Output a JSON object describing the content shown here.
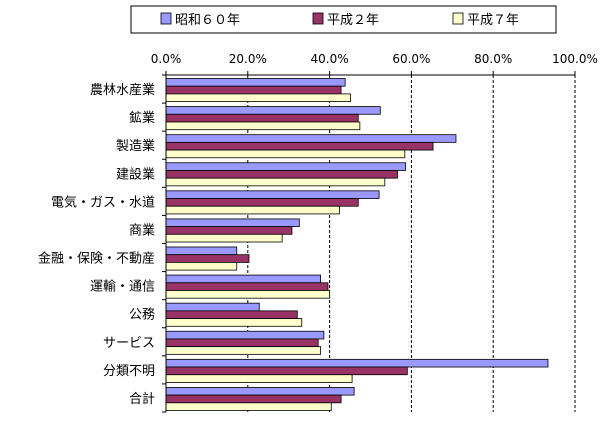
{
  "chart_data": {
    "type": "bar",
    "orientation": "horizontal",
    "categories": [
      "農林水産業",
      "鉱業",
      "製造業",
      "建設業",
      "電気・ガス・水道",
      "商業",
      "金融・保険・不動産",
      "運輸・通信",
      "公務",
      "サービス",
      "分類不明",
      "合計"
    ],
    "series": [
      {
        "name": "昭和６０年",
        "color": "#9999ff",
        "values": [
          43.8,
          52.4,
          70.9,
          58.6,
          52.1,
          32.6,
          17.3,
          37.8,
          22.8,
          38.6,
          93.4,
          46.0
        ]
      },
      {
        "name": "平成２年",
        "color": "#993366",
        "values": [
          42.8,
          47.0,
          65.3,
          56.6,
          47.0,
          30.8,
          20.3,
          39.6,
          32.1,
          37.2,
          59.0,
          42.8
        ]
      },
      {
        "name": "平成７年",
        "color": "#ffffcc",
        "values": [
          45.1,
          47.4,
          58.4,
          53.5,
          42.4,
          28.4,
          17.3,
          40.0,
          33.2,
          37.8,
          45.5,
          40.4
        ]
      }
    ],
    "x_ticks": [
      "0.0%",
      "20.0%",
      "40.0%",
      "60.0%",
      "80.0%",
      "100.0%"
    ],
    "xlim": [
      0,
      100
    ],
    "x_axis_position": "top",
    "grid": "vertical dashed",
    "legend_position": "top",
    "title": "",
    "xlabel": "",
    "ylabel": ""
  }
}
